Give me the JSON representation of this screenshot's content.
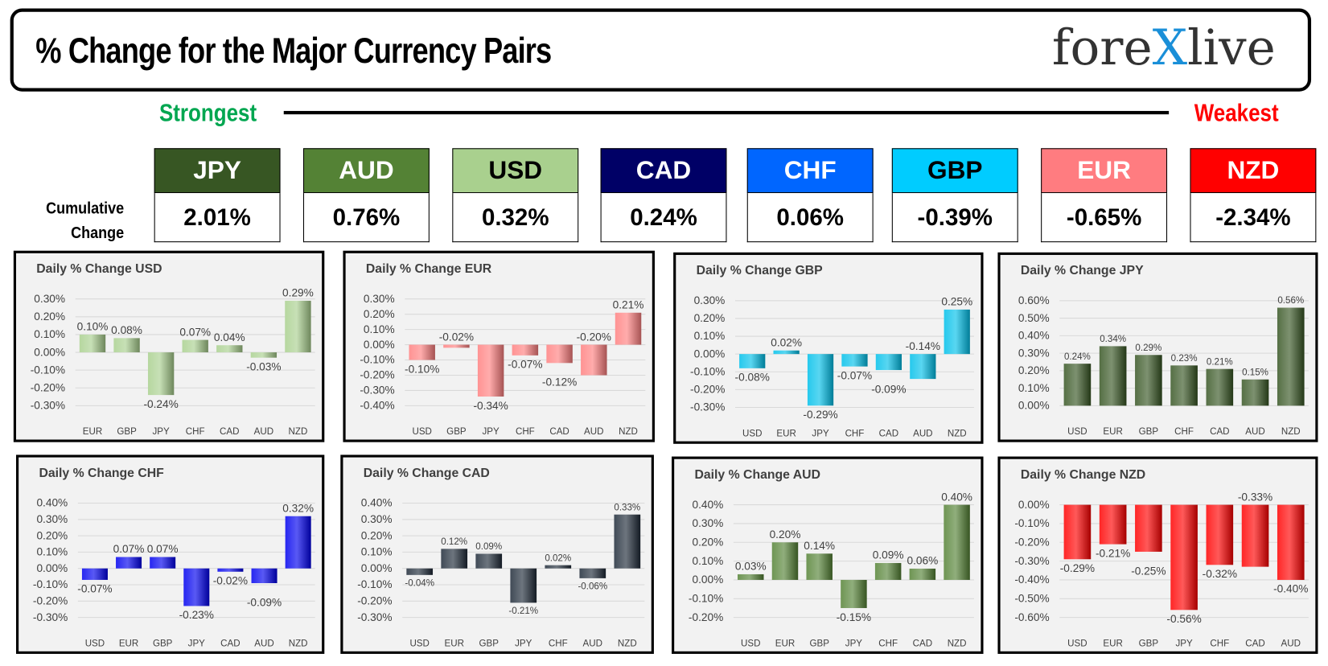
{
  "header": {
    "title": "% Change for the Major Currency Pairs",
    "logo": "forexlive"
  },
  "strongest_label": "Strongest",
  "weakest_label": "Weakest",
  "cumulative_label_1": "Cumulative",
  "cumulative_label_2": "Change",
  "currencies": [
    {
      "name": "JPY",
      "value": "2.01%",
      "color": "#375623",
      "text": "#ffffff"
    },
    {
      "name": "AUD",
      "value": "0.76%",
      "color": "#548235",
      "text": "#ffffff"
    },
    {
      "name": "USD",
      "value": "0.32%",
      "color": "#a9d08e",
      "text": "#000000"
    },
    {
      "name": "CAD",
      "value": "0.24%",
      "color": "#000066",
      "text": "#ffffff"
    },
    {
      "name": "CHF",
      "value": "0.06%",
      "color": "#0066ff",
      "text": "#ffffff"
    },
    {
      "name": "GBP",
      "value": "-0.39%",
      "color": "#00ccff",
      "text": "#000000"
    },
    {
      "name": "EUR",
      "value": "-0.65%",
      "color": "#ff7c80",
      "text": "#ffffff"
    },
    {
      "name": "NZD",
      "value": "-2.34%",
      "color": "#ff0000",
      "text": "#ffffff"
    }
  ],
  "chart_data": [
    {
      "type": "bar",
      "title": "Daily % Change USD",
      "categories": [
        "EUR",
        "GBP",
        "JPY",
        "CHF",
        "CAD",
        "AUD",
        "NZD"
      ],
      "values": [
        0.1,
        0.08,
        -0.24,
        0.07,
        0.04,
        -0.03,
        0.29
      ],
      "ylim": [
        -0.3,
        0.3
      ],
      "color": "#a9d08e"
    },
    {
      "type": "bar",
      "title": "Daily % Change EUR",
      "categories": [
        "USD",
        "GBP",
        "JPY",
        "CHF",
        "CAD",
        "AUD",
        "NZD"
      ],
      "values": [
        -0.1,
        -0.02,
        -0.34,
        -0.07,
        -0.12,
        -0.2,
        0.21
      ],
      "ylim": [
        -0.4,
        0.3
      ],
      "color": "#ff8080"
    },
    {
      "type": "bar",
      "title": "Daily % Change GBP",
      "categories": [
        "USD",
        "EUR",
        "JPY",
        "CHF",
        "CAD",
        "AUD",
        "NZD"
      ],
      "values": [
        -0.08,
        0.02,
        -0.29,
        -0.07,
        -0.09,
        -0.14,
        0.25
      ],
      "ylim": [
        -0.3,
        0.3
      ],
      "color": "#00c0ea"
    },
    {
      "type": "bar",
      "title": "Daily % Change JPY",
      "categories": [
        "USD",
        "EUR",
        "GBP",
        "CHF",
        "CAD",
        "AUD",
        "NZD"
      ],
      "values": [
        0.24,
        0.34,
        0.29,
        0.23,
        0.21,
        0.15,
        0.56
      ],
      "ylim": [
        0,
        0.6
      ],
      "color": "#375623"
    },
    {
      "type": "bar",
      "title": "Daily % Change CHF",
      "categories": [
        "USD",
        "EUR",
        "GBP",
        "JPY",
        "CAD",
        "AUD",
        "NZD"
      ],
      "values": [
        -0.07,
        0.07,
        0.07,
        -0.23,
        -0.02,
        -0.09,
        0.32
      ],
      "ylim": [
        -0.3,
        0.4
      ],
      "color": "#0000ee"
    },
    {
      "type": "bar",
      "title": "Daily % Change CAD",
      "categories": [
        "USD",
        "EUR",
        "GBP",
        "JPY",
        "CHF",
        "AUD",
        "NZD"
      ],
      "values": [
        -0.04,
        0.12,
        0.09,
        -0.21,
        0.02,
        -0.06,
        0.33
      ],
      "ylim": [
        -0.3,
        0.4
      ],
      "color": "#1e2a38"
    },
    {
      "type": "bar",
      "title": "Daily % Change AUD",
      "categories": [
        "USD",
        "EUR",
        "GBP",
        "JPY",
        "CHF",
        "CAD",
        "NZD"
      ],
      "values": [
        0.03,
        0.2,
        0.14,
        -0.15,
        0.09,
        0.06,
        0.4
      ],
      "ylim": [
        -0.2,
        0.4
      ],
      "color": "#548235"
    },
    {
      "type": "bar",
      "title": "Daily % Change NZD",
      "categories": [
        "USD",
        "EUR",
        "GBP",
        "JPY",
        "CHF",
        "CAD",
        "AUD"
      ],
      "values": [
        -0.29,
        -0.21,
        -0.25,
        -0.56,
        -0.32,
        -0.33,
        -0.4
      ],
      "ylim": [
        -0.6,
        0
      ],
      "color": "#ff0000"
    }
  ]
}
